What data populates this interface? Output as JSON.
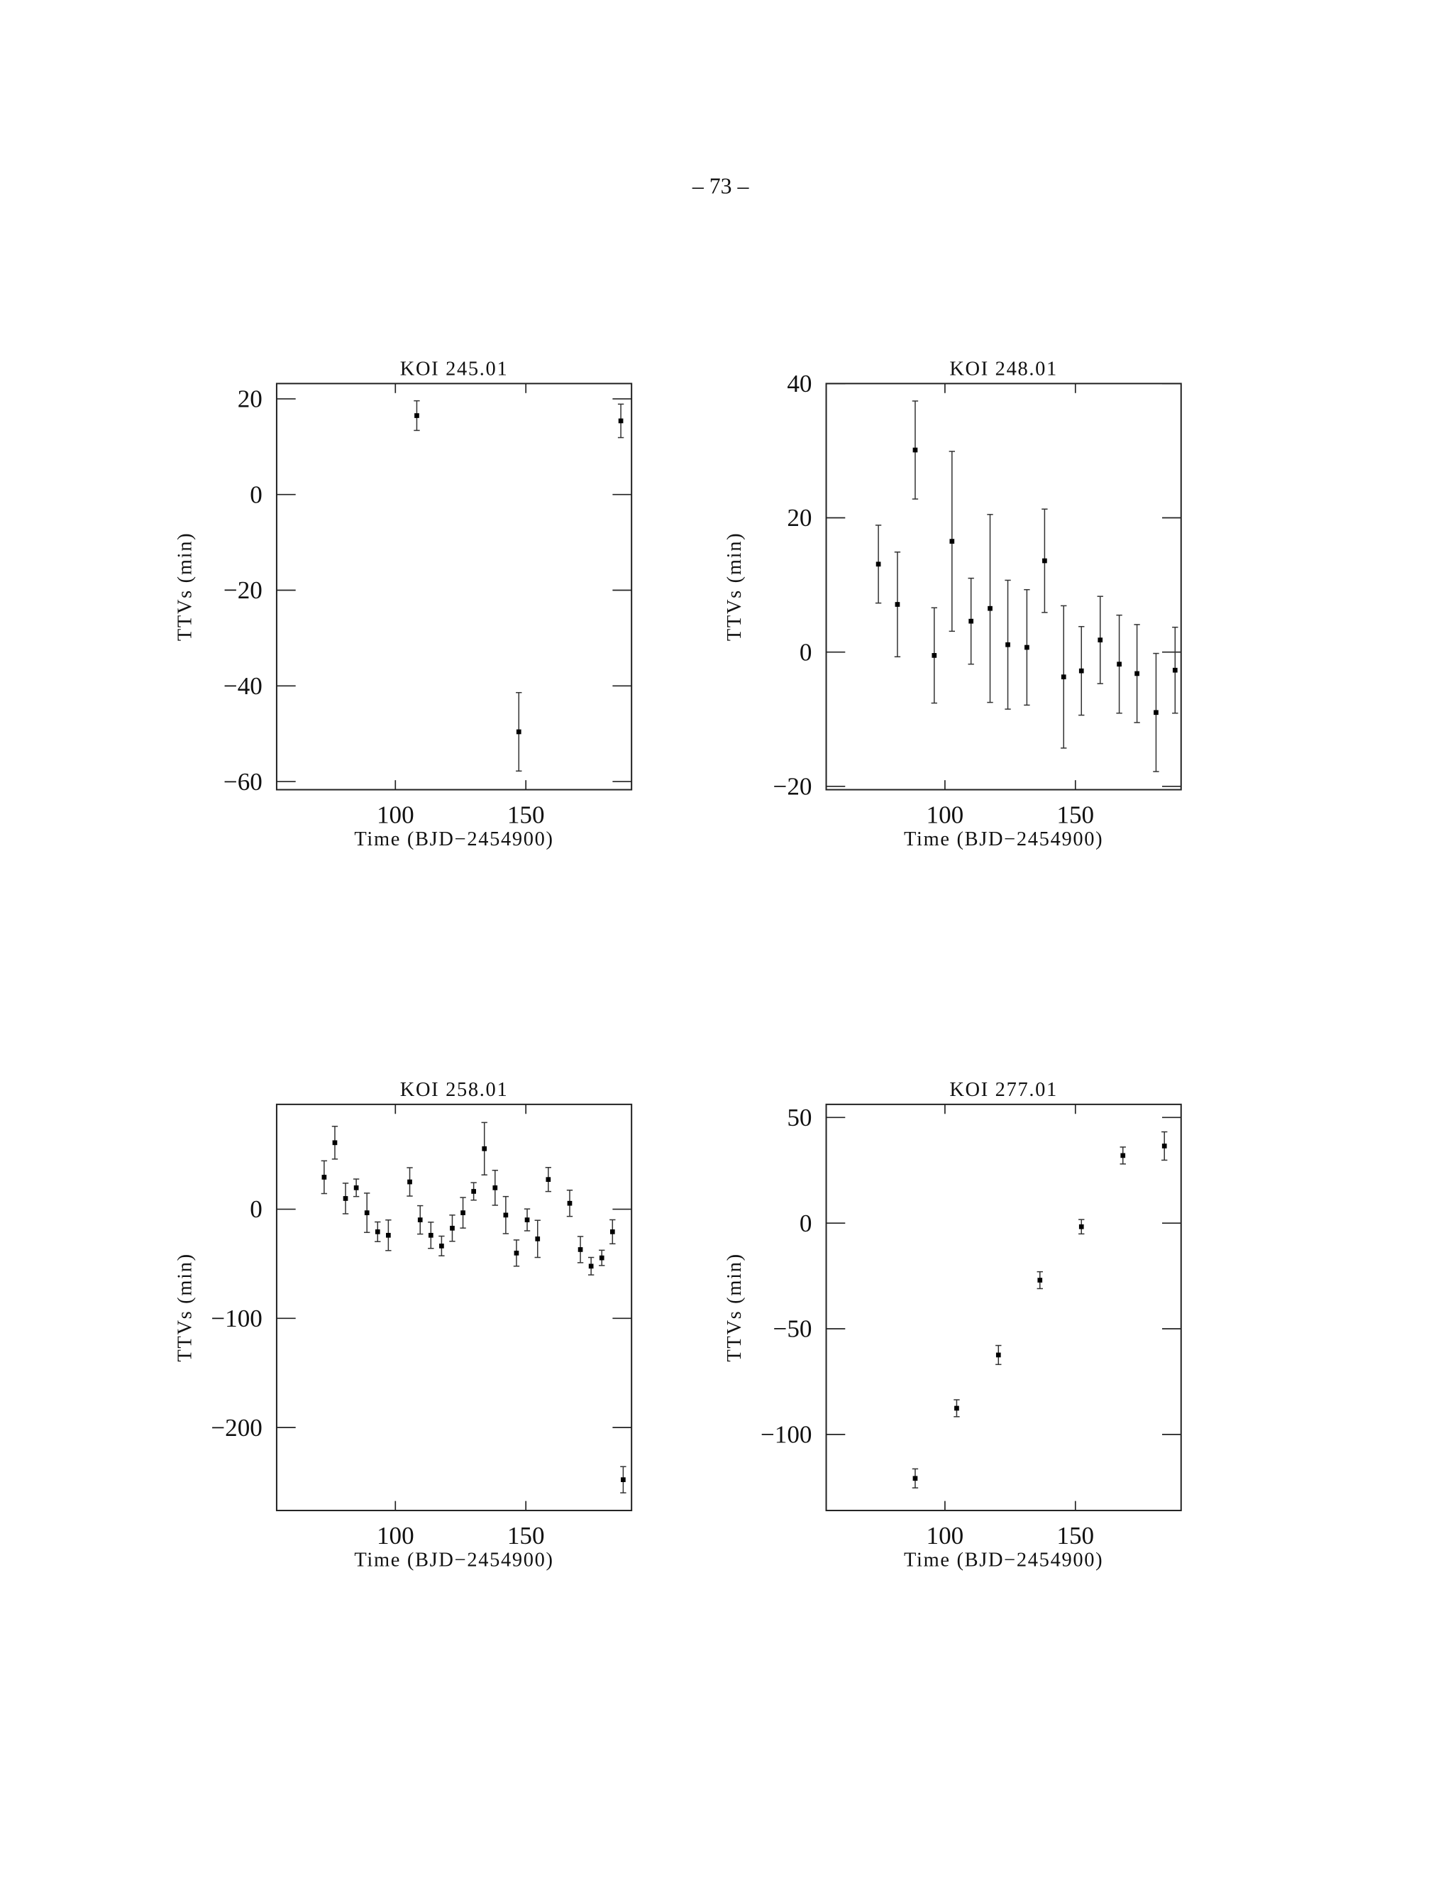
{
  "page_number": "– 73 –",
  "chart_data": [
    {
      "type": "scatter",
      "title": "KOI 245.01",
      "x_label": "Time (BJD−2454900)",
      "y_label": "TTVs (min)",
      "x": [
        108.2,
        147.3,
        186.4
      ],
      "y": [
        16.5,
        -49.6,
        15.4
      ],
      "errors": [
        3.1,
        8.2,
        3.5
      ],
      "xlim": [
        54.5,
        190.5
      ],
      "ylim": [
        -61.7,
        23.2
      ],
      "xticks": [
        100,
        150
      ],
      "yticks": [
        20,
        0,
        {
          "value": -20,
          "label": "−20"
        },
        {
          "value": -40,
          "label": "−40"
        },
        {
          "value": -60,
          "label": "−60"
        }
      ]
    },
    {
      "type": "scatter",
      "title": "KOI 248.01",
      "x_label": "Time (BJD−2454900)",
      "y_label": "TTVs (min)",
      "x": [
        74.5,
        81.8,
        88.6,
        95.9,
        102.7,
        110,
        117.3,
        124.1,
        131.4,
        138.2,
        145.5,
        152.3,
        159.5,
        166.8,
        173.6,
        180.9,
        188.2
      ],
      "y": [
        13.1,
        7.1,
        30.1,
        -0.5,
        16.5,
        4.6,
        6.5,
        1.1,
        0.7,
        13.6,
        -3.7,
        -2.8,
        1.8,
        -1.8,
        -3.2,
        -9,
        -2.7
      ],
      "errors": [
        5.8,
        7.8,
        7.3,
        7.1,
        13.4,
        6.4,
        14,
        9.6,
        8.6,
        7.7,
        10.6,
        6.6,
        6.5,
        7.3,
        7.3,
        8.8,
        6.4
      ],
      "xlim": [
        54.5,
        190.5
      ],
      "ylim": [
        -20.5,
        40
      ],
      "xticks": [
        100,
        150
      ],
      "yticks": [
        40,
        20,
        0,
        {
          "value": -20,
          "label": "−20"
        }
      ]
    },
    {
      "type": "scatter",
      "title": "KOI 258.01",
      "x_label": "Time (BJD−2454900)",
      "y_label": "TTVs (min)",
      "x": [
        72.7,
        76.8,
        80.9,
        85,
        89.1,
        93.2,
        97.3,
        105.5,
        109.5,
        113.6,
        117.7,
        121.8,
        125.9,
        130,
        134.1,
        138.2,
        142.3,
        146.4,
        150.5,
        154.5,
        158.6,
        166.8,
        170.9,
        175,
        179.1,
        183.2,
        187.3
      ],
      "y": [
        29.3,
        60.9,
        9.8,
        19.6,
        -3.3,
        -20.7,
        -23.9,
        25,
        -9.8,
        -23.9,
        -33.7,
        -17.4,
        -3.3,
        16.3,
        55.4,
        19.6,
        -5.4,
        -40.2,
        -9.8,
        -27.2,
        27.2,
        5.4,
        -37,
        -52.2,
        -44.6,
        -20.7,
        -247.8
      ],
      "errors": [
        15,
        15,
        14,
        8,
        18,
        9,
        14,
        13,
        13,
        12,
        9,
        12,
        14,
        8,
        24,
        16,
        17,
        12,
        10,
        17,
        11,
        12,
        12,
        8,
        7,
        11,
        12
      ],
      "xlim": [
        54.5,
        190.5
      ],
      "ylim": [
        -276,
        96
      ],
      "xticks": [
        100,
        150
      ],
      "yticks": [
        0,
        {
          "value": -100,
          "label": "−100"
        },
        {
          "value": -200,
          "label": "−200"
        }
      ]
    },
    {
      "type": "scatter",
      "title": "KOI 277.01",
      "x_label": "Time (BJD−2454900)",
      "y_label": "TTVs (min)",
      "x": [
        88.6,
        104.5,
        120.5,
        136.4,
        152.3,
        168.2,
        184.1
      ],
      "y": [
        -120.8,
        -87.6,
        -62.4,
        -27,
        -1.7,
        32,
        36.5
      ],
      "errors": [
        4.5,
        4,
        4.5,
        4,
        3.4,
        4,
        6.7
      ],
      "xlim": [
        54.5,
        190.5
      ],
      "ylim": [
        -136,
        56.2
      ],
      "xticks": [
        100,
        150
      ],
      "yticks": [
        50,
        0,
        {
          "value": -50,
          "label": "−50"
        },
        {
          "value": -100,
          "label": "−100"
        }
      ]
    }
  ]
}
